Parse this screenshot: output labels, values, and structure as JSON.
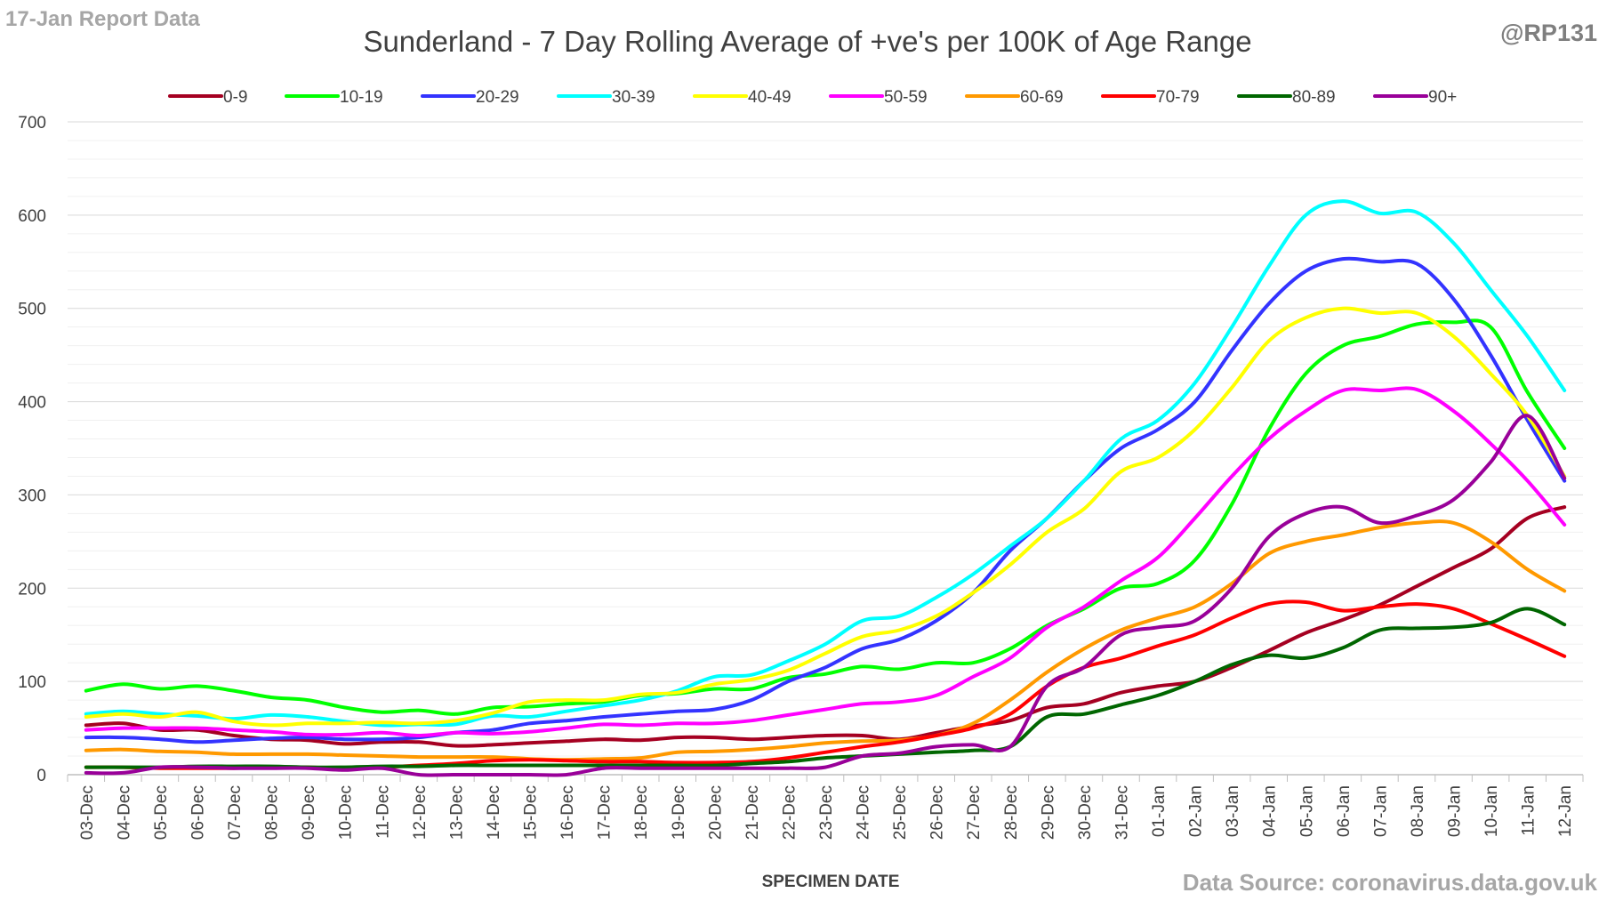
{
  "header": {
    "report_label": "17-Jan Report Data",
    "handle": "@RP131",
    "source": "Data Source: coronavirus.data.gov.uk"
  },
  "chart_data": {
    "type": "line",
    "title": "Sunderland - 7 Day Rolling Average of +ve's per 100K of Age Range",
    "xlabel": "SPECIMEN DATE",
    "ylabel": "",
    "ylim": [
      0,
      700
    ],
    "yticks": [
      0,
      100,
      200,
      300,
      400,
      500,
      600,
      700
    ],
    "grid": true,
    "legend_position": "top",
    "x": [
      "03-Dec",
      "04-Dec",
      "05-Dec",
      "06-Dec",
      "07-Dec",
      "08-Dec",
      "09-Dec",
      "10-Dec",
      "11-Dec",
      "12-Dec",
      "13-Dec",
      "14-Dec",
      "15-Dec",
      "16-Dec",
      "17-Dec",
      "18-Dec",
      "19-Dec",
      "20-Dec",
      "21-Dec",
      "22-Dec",
      "23-Dec",
      "24-Dec",
      "25-Dec",
      "26-Dec",
      "27-Dec",
      "28-Dec",
      "29-Dec",
      "30-Dec",
      "31-Dec",
      "01-Jan",
      "02-Jan",
      "03-Jan",
      "04-Jan",
      "05-Jan",
      "06-Jan",
      "07-Jan",
      "08-Jan",
      "09-Jan",
      "10-Jan",
      "11-Jan",
      "12-Jan"
    ],
    "series": [
      {
        "name": "0-9",
        "color": "#a50021",
        "values": [
          53,
          55,
          48,
          48,
          42,
          38,
          37,
          33,
          35,
          35,
          31,
          32,
          34,
          36,
          38,
          37,
          40,
          40,
          38,
          40,
          42,
          42,
          38,
          45,
          52,
          58,
          72,
          76,
          88,
          95,
          100,
          115,
          133,
          152,
          166,
          182,
          202,
          222,
          242,
          275,
          287
        ]
      },
      {
        "name": "10-19",
        "color": "#00ff00",
        "values": [
          90,
          97,
          92,
          95,
          90,
          83,
          80,
          72,
          67,
          69,
          65,
          72,
          73,
          76,
          78,
          85,
          87,
          92,
          92,
          104,
          108,
          116,
          113,
          120,
          120,
          135,
          160,
          178,
          200,
          205,
          230,
          290,
          370,
          430,
          460,
          470,
          483,
          485,
          480,
          410,
          350
        ]
      },
      {
        "name": "20-29",
        "color": "#3333ff",
        "values": [
          40,
          40,
          38,
          35,
          37,
          39,
          40,
          38,
          38,
          40,
          45,
          48,
          55,
          58,
          62,
          65,
          68,
          70,
          80,
          100,
          115,
          135,
          145,
          165,
          195,
          240,
          275,
          315,
          350,
          370,
          400,
          455,
          505,
          540,
          553,
          550,
          548,
          510,
          450,
          380,
          315
        ]
      },
      {
        "name": "30-39",
        "color": "#00ffff",
        "values": [
          65,
          68,
          65,
          63,
          60,
          64,
          62,
          57,
          53,
          54,
          54,
          63,
          62,
          68,
          74,
          80,
          90,
          105,
          107,
          122,
          140,
          165,
          170,
          190,
          215,
          245,
          275,
          315,
          360,
          380,
          420,
          480,
          545,
          600,
          615,
          602,
          603,
          570,
          520,
          470,
          412
        ]
      },
      {
        "name": "40-49",
        "color": "#ffff00",
        "values": [
          62,
          65,
          62,
          67,
          57,
          53,
          55,
          55,
          56,
          55,
          58,
          66,
          78,
          80,
          80,
          86,
          88,
          97,
          102,
          112,
          130,
          148,
          155,
          170,
          195,
          225,
          260,
          285,
          325,
          340,
          370,
          415,
          465,
          490,
          500,
          495,
          495,
          470,
          430,
          385,
          320
        ]
      },
      {
        "name": "50-59",
        "color": "#ff00ff",
        "values": [
          48,
          50,
          50,
          50,
          48,
          46,
          43,
          43,
          45,
          42,
          45,
          44,
          46,
          50,
          54,
          53,
          55,
          55,
          58,
          64,
          70,
          76,
          78,
          85,
          105,
          125,
          158,
          180,
          208,
          233,
          275,
          320,
          360,
          390,
          412,
          412,
          413,
          390,
          355,
          315,
          268
        ]
      },
      {
        "name": "60-69",
        "color": "#ff9900",
        "values": [
          26,
          27,
          25,
          24,
          22,
          22,
          22,
          21,
          20,
          19,
          19,
          19,
          17,
          16,
          17,
          18,
          24,
          25,
          27,
          30,
          34,
          36,
          37,
          42,
          55,
          80,
          110,
          135,
          155,
          168,
          180,
          205,
          237,
          250,
          257,
          265,
          270,
          270,
          250,
          220,
          197
        ]
      },
      {
        "name": "70-79",
        "color": "#ff0000",
        "values": [
          8,
          8,
          7,
          7,
          7,
          8,
          8,
          7,
          8,
          10,
          12,
          15,
          16,
          15,
          14,
          14,
          13,
          13,
          14,
          18,
          24,
          30,
          35,
          42,
          50,
          65,
          95,
          115,
          125,
          138,
          150,
          168,
          183,
          185,
          176,
          180,
          183,
          178,
          162,
          145,
          127
        ]
      },
      {
        "name": "80-89",
        "color": "#006600",
        "values": [
          8,
          8,
          8,
          9,
          9,
          9,
          8,
          8,
          9,
          9,
          10,
          10,
          10,
          10,
          10,
          10,
          10,
          10,
          12,
          14,
          18,
          20,
          22,
          24,
          26,
          30,
          62,
          65,
          75,
          85,
          100,
          118,
          128,
          125,
          136,
          155,
          157,
          158,
          163,
          178,
          161
        ]
      },
      {
        "name": "90+",
        "color": "#990099",
        "values": [
          2,
          2,
          8,
          8,
          7,
          7,
          7,
          5,
          7,
          0,
          0,
          0,
          0,
          0,
          7,
          7,
          7,
          7,
          7,
          7,
          8,
          20,
          23,
          30,
          32,
          30,
          95,
          115,
          150,
          158,
          165,
          200,
          255,
          280,
          287,
          270,
          278,
          295,
          335,
          385,
          318
        ]
      }
    ]
  }
}
